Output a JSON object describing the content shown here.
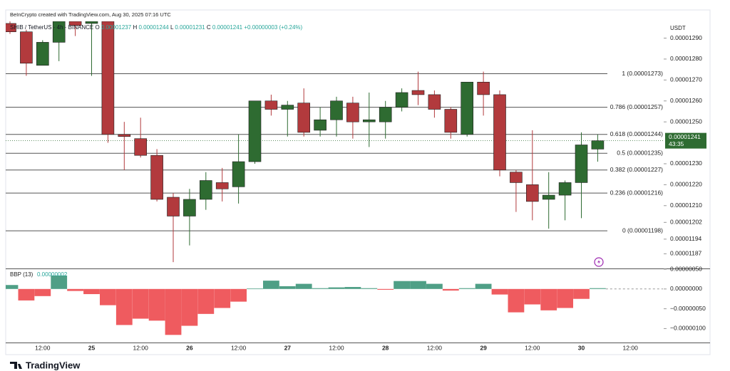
{
  "attribution": "BeInCrypto created with TradingView.com, Aug 30, 2025 07:16 UTC",
  "brand": "TradingView",
  "chart_data": [
    {
      "type": "candlestick",
      "symbol": "SHIB / TetherUS · 4h · BINANCE",
      "currency": "USDT",
      "ohlc_legend": [
        {
          "key": "O",
          "text": "0.00001237"
        },
        {
          "key": "H",
          "text": "0.00001244"
        },
        {
          "key": "L",
          "text": "0.00001231"
        },
        {
          "key": "C",
          "text": "0.00001241"
        }
      ],
      "change_text": "+0.00000003 (+0.24%)",
      "categories": [
        null,
        null,
        "12:00",
        null,
        null,
        "25",
        null,
        null,
        "12:00",
        null,
        null,
        "26",
        null,
        null,
        "12:00",
        null,
        null,
        "27",
        null,
        null,
        "12:00",
        null,
        null,
        "28",
        null,
        null,
        "12:00",
        null,
        null,
        "29",
        null,
        null,
        "12:00",
        null,
        null,
        "30",
        null,
        null,
        "12:00",
        null
      ],
      "open": [
        1.297e-05,
        1.293e-05,
        1.277e-05,
        1.288e-05,
        1.298e-05,
        1.297e-05,
        1.298e-05,
        1.244e-05,
        1.242e-05,
        1.234e-05,
        1.214e-05,
        1.205e-05,
        1.213e-05,
        1.221e-05,
        1.219e-05,
        1.231e-05,
        1.26e-05,
        1.256e-05,
        1.259e-05,
        1.246e-05,
        1.251e-05,
        1.259e-05,
        1.25e-05,
        1.25e-05,
        1.257e-05,
        1.265e-05,
        1.263e-05,
        1.256e-05,
        1.244e-05,
        1.269e-05,
        1.263e-05,
        1.226e-05,
        1.22e-05,
        1.213e-05,
        1.215e-05,
        1.221e-05,
        1.237e-05,
        null,
        null,
        null
      ],
      "high": [
        1.299e-05,
        1.294e-05,
        1.289e-05,
        1.3e-05,
        1.3e-05,
        1.3e-05,
        1.3e-05,
        1.25e-05,
        1.252e-05,
        1.237e-05,
        1.216e-05,
        1.218e-05,
        1.226e-05,
        1.228e-05,
        1.244e-05,
        1.26e-05,
        1.263e-05,
        1.26e-05,
        1.266e-05,
        1.257e-05,
        1.262e-05,
        1.262e-05,
        1.264e-05,
        1.26e-05,
        1.266e-05,
        1.274e-05,
        1.265e-05,
        1.257e-05,
        1.269e-05,
        1.274e-05,
        1.265e-05,
        1.227e-05,
        1.246e-05,
        1.226e-05,
        1.222e-05,
        1.245e-05,
        1.244e-05,
        null,
        null,
        null
      ],
      "low": [
        1.292e-05,
        1.272e-05,
        1.277e-05,
        1.279e-05,
        1.291e-05,
        1.272e-05,
        1.24e-05,
        1.227e-05,
        1.233e-05,
        1.212e-05,
        1.183e-05,
        1.191e-05,
        1.208e-05,
        1.212e-05,
        1.211e-05,
        1.23e-05,
        1.253e-05,
        1.243e-05,
        1.243e-05,
        1.243e-05,
        1.243e-05,
        1.242e-05,
        1.238e-05,
        1.242e-05,
        1.255e-05,
        1.258e-05,
        1.252e-05,
        1.242e-05,
        1.243e-05,
        1.253e-05,
        1.224e-05,
        1.207e-05,
        1.203e-05,
        1.199e-05,
        1.203e-05,
        1.204e-05,
        1.231e-05,
        null,
        null,
        null
      ],
      "close": [
        1.293e-05,
        1.278e-05,
        1.288e-05,
        1.298e-05,
        1.296e-05,
        1.298e-05,
        1.244e-05,
        1.243e-05,
        1.234e-05,
        1.213e-05,
        1.205e-05,
        1.213e-05,
        1.222e-05,
        1.218e-05,
        1.231e-05,
        1.26e-05,
        1.256e-05,
        1.258e-05,
        1.245e-05,
        1.251e-05,
        1.26e-05,
        1.25e-05,
        1.251e-05,
        1.257e-05,
        1.264e-05,
        1.263e-05,
        1.256e-05,
        1.245e-05,
        1.269e-05,
        1.263e-05,
        1.227e-05,
        1.221e-05,
        1.212e-05,
        1.215e-05,
        1.221e-05,
        1.239e-05,
        1.241e-05,
        null,
        null,
        null
      ],
      "up_color": "#2e6b31",
      "down_color": "#b23a3d",
      "ylim": [
        1.18e-05,
        1.298e-05
      ],
      "yticks": [
        {
          "value": 1.29e-05,
          "label": "0.00001290"
        },
        {
          "value": 1.28e-05,
          "label": "0.00001280"
        },
        {
          "value": 1.27e-05,
          "label": "0.00001270"
        },
        {
          "value": 1.26e-05,
          "label": "0.00001260"
        },
        {
          "value": 1.25e-05,
          "label": "0.00001250"
        },
        {
          "value": 1.23e-05,
          "label": "0.00001230"
        },
        {
          "value": 1.22e-05,
          "label": "0.00001220"
        },
        {
          "value": 1.21e-05,
          "label": "0.00001210"
        },
        {
          "value": 1.202e-05,
          "label": "0.00001202"
        },
        {
          "value": 1.194e-05,
          "label": "0.00001194"
        },
        {
          "value": 1.187e-05,
          "label": "0.00001187"
        }
      ],
      "levels": [
        {
          "value": 1.273e-05,
          "label": "1 (0.00001273)"
        },
        {
          "value": 1.257e-05,
          "label": "0.786 (0.00001257)"
        },
        {
          "value": 1.244e-05,
          "label": "0.618 (0.00001244)"
        },
        {
          "value": 1.235e-05,
          "label": "0.5 (0.00001235)"
        },
        {
          "value": 1.227e-05,
          "label": "0.382 (0.00001227)"
        },
        {
          "value": 1.216e-05,
          "label": "0.236 (0.00001216)"
        },
        {
          "value": 1.198e-05,
          "label": "0 (0.00001198)"
        }
      ],
      "level_color": "#555555",
      "last_price": {
        "value": 1.241e-05,
        "label": "0.00001241"
      },
      "countdown": "43:35"
    },
    {
      "type": "histogram",
      "name": "BBP (13)",
      "last_value_label": "0.00000002",
      "values": [
        1e-07,
        -2.9e-07,
        -1.8e-07,
        3.4e-07,
        -5e-08,
        -1.3e-07,
        -4.1e-07,
        -9.1e-07,
        -7.5e-07,
        -8e-07,
        -1.16e-06,
        -9.3e-07,
        -6.3e-07,
        -4.8e-07,
        -3.2e-07,
        1e-08,
        2.1e-07,
        7e-08,
        1.3e-07,
        2e-08,
        4e-08,
        5e-08,
        2e-08,
        -2e-08,
        2e-07,
        2e-07,
        1.3e-07,
        -4e-08,
        2e-08,
        1.3e-07,
        -1.4e-07,
        -5.9e-07,
        -3.9e-07,
        -5.4e-07,
        -4.8e-07,
        -2.5e-07,
        2e-08,
        null,
        null,
        null
      ],
      "up_color": "#4f9f86",
      "down_color": "#ef5b5f",
      "ylim": [
        -1.37e-06,
        5e-07
      ],
      "yticks": [
        {
          "value": 5e-07,
          "label": "0.00000050"
        },
        {
          "value": 0,
          "label": "0.00000000"
        },
        {
          "value": -5e-07,
          "label": "−0.00000050"
        },
        {
          "value": -1e-06,
          "label": "−0.00000100"
        }
      ]
    }
  ]
}
